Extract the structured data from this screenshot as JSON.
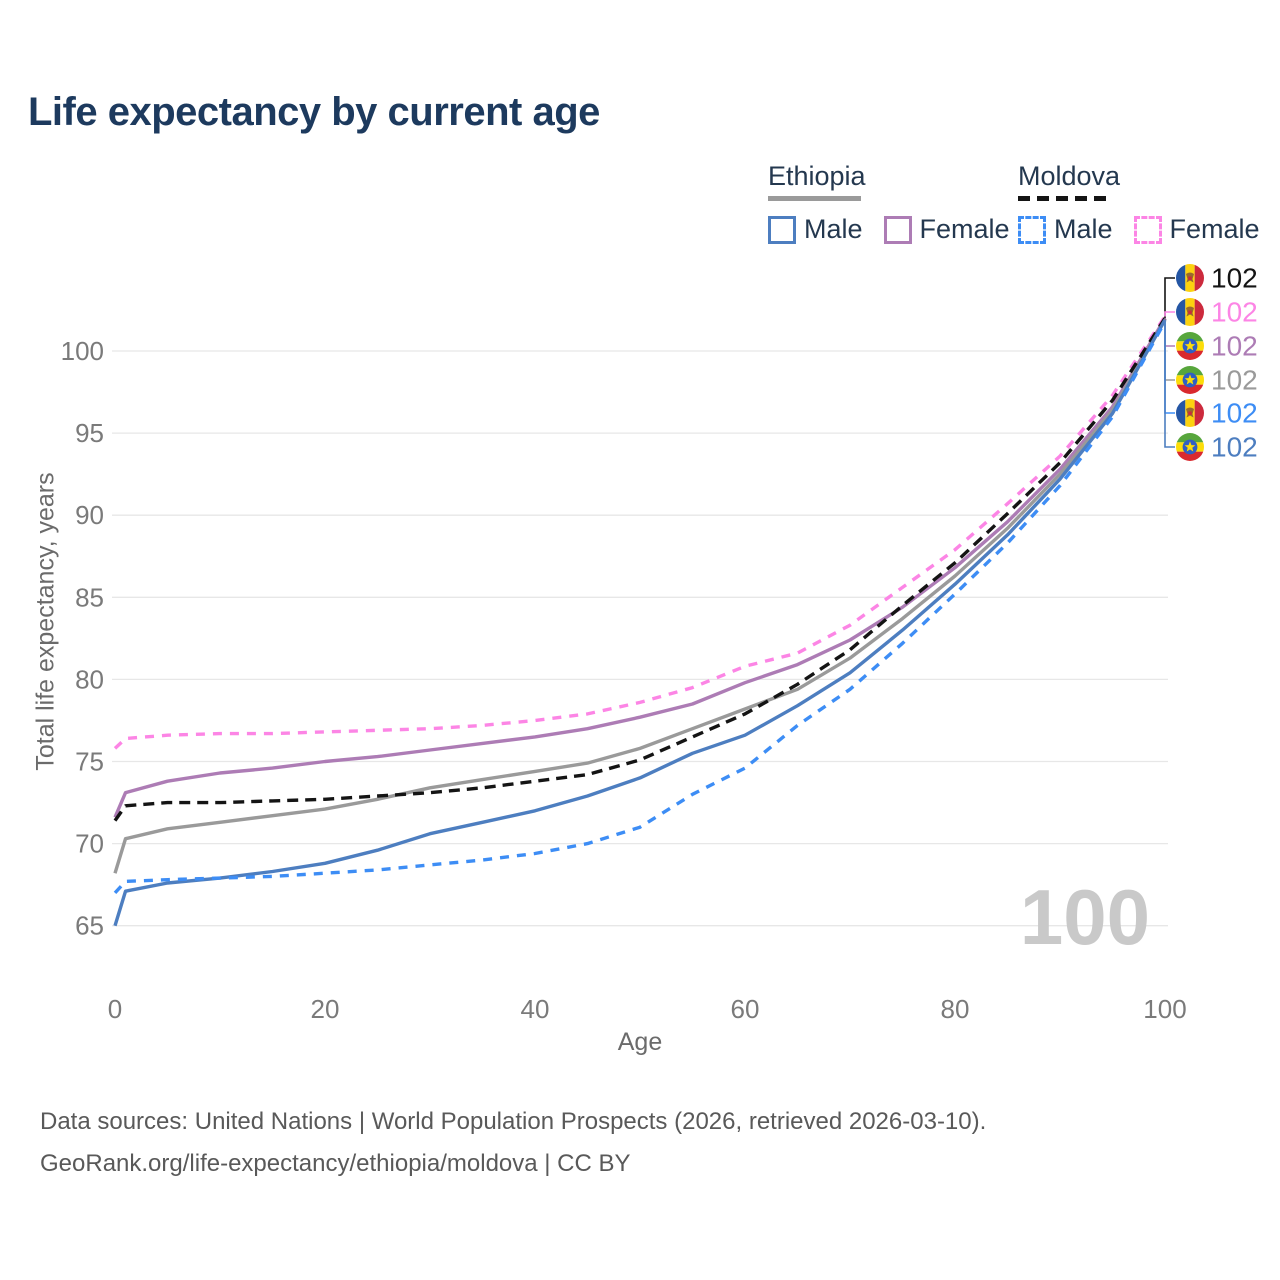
{
  "title": "Life expectancy by current age",
  "legend": {
    "groups": [
      {
        "country": "Ethiopia",
        "line_style": "solid",
        "underline_color": "#9a9a9a",
        "items": [
          {
            "label": "Male",
            "color": "#4d7ec0",
            "dashed": false
          },
          {
            "label": "Female",
            "color": "#ad7cb5",
            "dashed": false
          }
        ]
      },
      {
        "country": "Moldova",
        "line_style": "dashed",
        "underline_color": "#141414",
        "items": [
          {
            "label": "Male",
            "color": "#3d8df5",
            "dashed": true
          },
          {
            "label": "Female",
            "color": "#fc85e5",
            "dashed": true
          }
        ]
      }
    ]
  },
  "chart_data": {
    "type": "line",
    "title": "Life expectancy by current age",
    "xlabel": "Age",
    "ylabel": "Total life expectancy, years",
    "x_ticks": [
      0,
      20,
      40,
      60,
      80,
      100
    ],
    "y_ticks": [
      65,
      70,
      75,
      80,
      85,
      90,
      95,
      100
    ],
    "xlim": [
      0,
      100
    ],
    "ylim": [
      63,
      104
    ],
    "grid": true,
    "grid_color": "#e7e7e7",
    "tick_color": "#7a7a7a",
    "watermark": "100",
    "x": [
      0,
      1,
      5,
      10,
      15,
      20,
      25,
      30,
      35,
      40,
      45,
      50,
      55,
      60,
      65,
      70,
      75,
      80,
      85,
      90,
      95,
      100
    ],
    "series": [
      {
        "name": "Ethiopia Female",
        "country": "Ethiopia",
        "sex": "Female",
        "color": "#ad7cb5",
        "line_style": "solid",
        "flag": "ethiopia",
        "end_label": "102",
        "label_row": 2,
        "values": [
          71.6,
          73.1,
          73.8,
          74.3,
          74.6,
          75.0,
          75.3,
          75.7,
          76.1,
          76.5,
          77.0,
          77.7,
          78.5,
          79.8,
          80.9,
          82.4,
          84.4,
          86.8,
          89.6,
          92.8,
          96.6,
          102.0
        ]
      },
      {
        "name": "Moldova Female",
        "country": "Moldova",
        "sex": "Female",
        "color": "#fc85e5",
        "line_style": "dashed",
        "flag": "moldova",
        "end_label": "102",
        "label_row": 1,
        "values": [
          75.8,
          76.4,
          76.6,
          76.7,
          76.7,
          76.8,
          76.9,
          77.0,
          77.2,
          77.5,
          77.9,
          78.6,
          79.5,
          80.8,
          81.6,
          83.3,
          85.6,
          87.9,
          90.7,
          93.6,
          97.3,
          102.1
        ]
      },
      {
        "name": "Ethiopia",
        "country": "Ethiopia",
        "sex": "Both",
        "color": "#9a9a9a",
        "line_style": "solid",
        "flag": "ethiopia",
        "end_label": "102",
        "label_row": 3,
        "values": [
          68.2,
          70.3,
          70.9,
          71.3,
          71.7,
          72.1,
          72.7,
          73.4,
          73.9,
          74.4,
          74.9,
          75.8,
          77.0,
          78.2,
          79.4,
          81.3,
          83.7,
          86.3,
          89.2,
          92.5,
          96.4,
          101.9
        ]
      },
      {
        "name": "Moldova",
        "country": "Moldova",
        "sex": "Both",
        "color": "#141414",
        "line_style": "dashed",
        "flag": "moldova",
        "end_label": "102",
        "label_row": 0,
        "values": [
          71.4,
          72.3,
          72.5,
          72.5,
          72.6,
          72.7,
          72.9,
          73.1,
          73.4,
          73.8,
          74.2,
          75.1,
          76.5,
          77.9,
          79.7,
          81.8,
          84.5,
          87.1,
          90.1,
          93.2,
          97.0,
          102.0
        ]
      },
      {
        "name": "Ethiopia Male",
        "country": "Ethiopia",
        "sex": "Male",
        "color": "#4d7ec0",
        "line_style": "solid",
        "flag": "ethiopia",
        "end_label": "102",
        "label_row": 5,
        "values": [
          65.0,
          67.1,
          67.6,
          67.9,
          68.3,
          68.8,
          69.6,
          70.6,
          71.3,
          72.0,
          72.9,
          74.0,
          75.5,
          76.6,
          78.4,
          80.4,
          83.0,
          85.8,
          88.8,
          92.2,
          96.2,
          101.9
        ]
      },
      {
        "name": "Moldova Male",
        "country": "Moldova",
        "sex": "Male",
        "color": "#3d8df5",
        "line_style": "dashed",
        "flag": "moldova",
        "end_label": "102",
        "label_row": 4,
        "values": [
          67.0,
          67.7,
          67.8,
          67.9,
          68.0,
          68.2,
          68.4,
          68.7,
          69.0,
          69.4,
          70.0,
          71.0,
          73.0,
          74.6,
          77.2,
          79.4,
          82.2,
          85.2,
          88.3,
          91.8,
          96.0,
          101.8
        ]
      }
    ]
  },
  "flags": {
    "moldova": {
      "blue": "#2456a4",
      "yellow": "#fcd20f",
      "red": "#cc2a3d",
      "emblem": "#9a6a2e"
    },
    "ethiopia": {
      "green": "#57a63c",
      "yellow": "#fcdd09",
      "red": "#d9292e",
      "disc": "#2f5fc4",
      "star": "#fcdd09"
    }
  },
  "sources": {
    "line1": "Data sources: United Nations | World Population Prospects (2026, retrieved 2026-03-10).",
    "line2": "GeoRank.org/life-expectancy/ethiopia/moldova | CC BY"
  }
}
